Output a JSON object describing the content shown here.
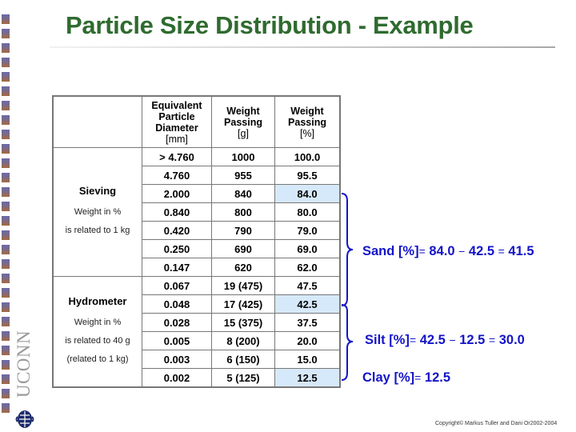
{
  "title": "Particle Size Distribution - Example",
  "branding": {
    "logo_text": "UCONN",
    "crest": "husky-crest"
  },
  "table": {
    "headers": [
      {
        "label": "",
        "unit": ""
      },
      {
        "label": "Equivalent Particle Diameter",
        "unit": "[mm]"
      },
      {
        "label": "Weight Passing",
        "unit": "[g]"
      },
      {
        "label": "Weight Passing",
        "unit": "[%]"
      }
    ],
    "groups": [
      {
        "method": "Sieving",
        "notes": [
          "Weight in %",
          "is related to 1 kg"
        ],
        "rows": [
          {
            "diameter": "> 4.760",
            "weight_g": "1000",
            "weight_pct": "100.0",
            "highlight": false,
            "blue": false
          },
          {
            "diameter": "4.760",
            "weight_g": "955",
            "weight_pct": "95.5",
            "highlight": false,
            "blue": false
          },
          {
            "diameter": "2.000",
            "weight_g": "840",
            "weight_pct": "84.0",
            "highlight": true,
            "blue": false
          },
          {
            "diameter": "0.840",
            "weight_g": "800",
            "weight_pct": "80.0",
            "highlight": false,
            "blue": false
          },
          {
            "diameter": "0.420",
            "weight_g": "790",
            "weight_pct": "79.0",
            "highlight": false,
            "blue": false
          },
          {
            "diameter": "0.250",
            "weight_g": "690",
            "weight_pct": "69.0",
            "highlight": false,
            "blue": false
          },
          {
            "diameter": "0.147",
            "weight_g": "620",
            "weight_pct": "62.0",
            "highlight": false,
            "blue": false
          }
        ]
      },
      {
        "method": "Hydrometer",
        "notes": [
          "Weight in %",
          "is related to 40 g",
          "(related to 1 kg)"
        ],
        "rows": [
          {
            "diameter": "0.067",
            "weight_g": "19 (475)",
            "weight_pct": "47.5",
            "highlight": false,
            "blue": true
          },
          {
            "diameter": "0.048",
            "weight_g": "17 (425)",
            "weight_pct": "42.5",
            "highlight": true,
            "blue": true
          },
          {
            "diameter": "0.028",
            "weight_g": "15 (375)",
            "weight_pct": "37.5",
            "highlight": false,
            "blue": true
          },
          {
            "diameter": "0.005",
            "weight_g": "8 (200)",
            "weight_pct": "20.0",
            "highlight": false,
            "blue": true
          },
          {
            "diameter": "0.003",
            "weight_g": "6 (150)",
            "weight_pct": "15.0",
            "highlight": false,
            "blue": true
          },
          {
            "diameter": "0.002",
            "weight_g": "5 (125)",
            "weight_pct": "12.5",
            "highlight": true,
            "blue": true
          }
        ]
      }
    ]
  },
  "formulas": {
    "sand": {
      "label": "Sand",
      "unit": "[%]",
      "eq": "=",
      "a": "84.0",
      "minus": "−",
      "b": "42.5",
      "eq2": "=",
      "result": "41.5"
    },
    "silt": {
      "label": "Silt",
      "unit": "[%]",
      "eq": "=",
      "a": "42.5",
      "minus": "−",
      "b": "12.5",
      "eq2": "=",
      "result": "30.0"
    },
    "clay": {
      "label": "Clay",
      "unit": "[%]",
      "eq": "=",
      "result": "12.5"
    }
  },
  "colors": {
    "title": "#2f6b2f",
    "formula": "#1414c8",
    "highlight": "#d6e9fb",
    "blue_values": "#1f1fb8"
  },
  "footer": {
    "copyright": "Copyright© Markus Tuller and Dani Or2002-2004"
  }
}
